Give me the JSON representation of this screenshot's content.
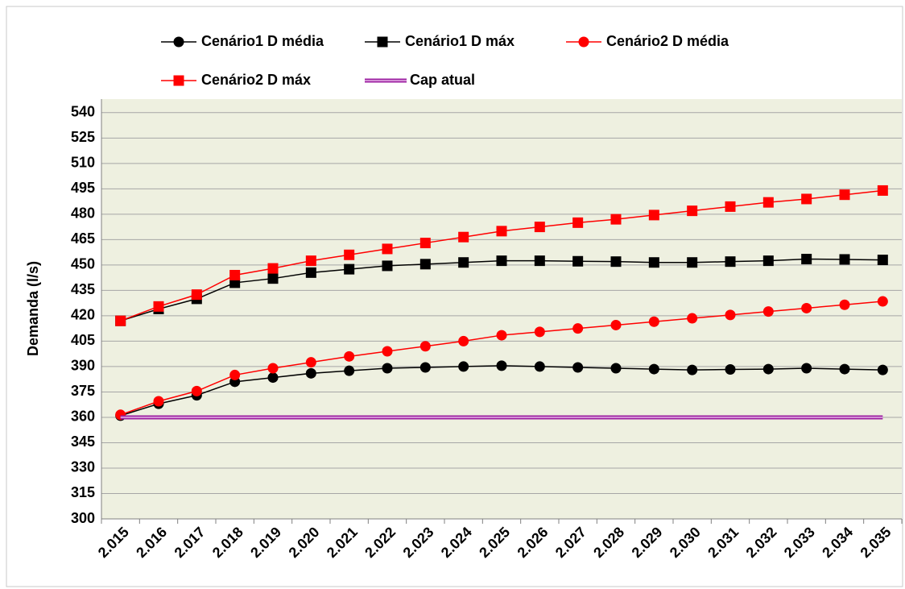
{
  "chart_data": {
    "type": "line",
    "y_label": "Demanda (l/s)",
    "categories": [
      "2.015",
      "2.016",
      "2.017",
      "2.018",
      "2.019",
      "2.020",
      "2.021",
      "2.022",
      "2.023",
      "2.024",
      "2.025",
      "2.026",
      "2.027",
      "2.028",
      "2.029",
      "2.030",
      "2.031",
      "2.032",
      "2.033",
      "2.034",
      "2.035"
    ],
    "series": [
      {
        "name": "Cenário1 D média",
        "color": "#000000",
        "marker": "circle",
        "values": [
          361,
          368,
          373,
          381,
          383.5,
          386,
          387.5,
          389,
          389.5,
          390,
          390.5,
          390,
          389.5,
          389,
          388.5,
          388,
          388.3,
          388.5,
          389,
          388.5,
          388
        ]
      },
      {
        "name": "Cenário1 D máx",
        "color": "#000000",
        "marker": "square",
        "values": [
          417,
          424,
          430,
          439.5,
          442,
          445.5,
          447.5,
          449.5,
          450.5,
          451.5,
          452.5,
          452.5,
          452.2,
          452,
          451.5,
          451.5,
          452,
          452.5,
          453.5,
          453.3,
          453
        ]
      },
      {
        "name": "Cenário2 D média",
        "color": "#ff0000",
        "marker": "circle",
        "values": [
          361.5,
          369.5,
          375.5,
          385,
          389,
          392.5,
          396,
          399,
          402,
          405,
          408.5,
          410.5,
          412.5,
          414.5,
          416.5,
          418.5,
          420.5,
          422.5,
          424.5,
          426.5,
          428.5
        ]
      },
      {
        "name": "Cenário2 D máx",
        "color": "#ff0000",
        "marker": "square",
        "values": [
          417,
          425.5,
          432.5,
          444,
          448,
          452.5,
          456,
          459.5,
          463,
          466.5,
          470,
          472.5,
          475,
          477,
          479.5,
          482,
          484.5,
          487,
          489,
          491.5,
          494
        ]
      },
      {
        "name": "Cap atual",
        "color": "#9b1fa0",
        "marker": "none",
        "values": [
          360,
          360,
          360,
          360,
          360,
          360,
          360,
          360,
          360,
          360,
          360,
          360,
          360,
          360,
          360,
          360,
          360,
          360,
          360,
          360,
          360
        ]
      }
    ],
    "ylim": [
      300,
      548
    ],
    "yticks": [
      300,
      315,
      330,
      345,
      360,
      375,
      390,
      405,
      420,
      435,
      450,
      465,
      480,
      495,
      510,
      525,
      540
    ],
    "grid": true,
    "legend": "top"
  }
}
